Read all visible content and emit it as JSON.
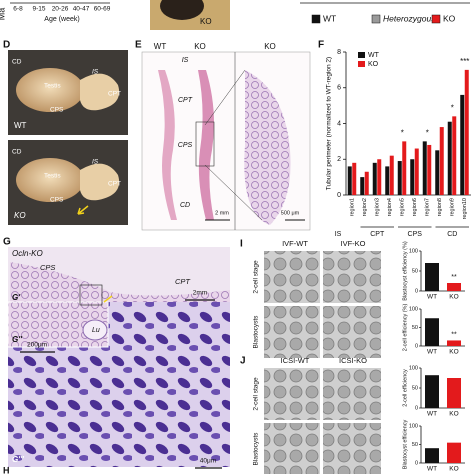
{
  "top": {
    "axis_label_cut": "Ma",
    "xticks": [
      "6-8",
      "9-15",
      "20-26",
      "40-47",
      "60-69"
    ],
    "xlabel": "Age (week)",
    "photo_label": "KO",
    "legend": [
      {
        "name": "WT",
        "color": "#111111"
      },
      {
        "name": "Heterozygous",
        "color": "#9a9a9a"
      },
      {
        "name": "KO",
        "color": "#e31a1c"
      }
    ]
  },
  "panel_d": {
    "label": "D",
    "wt": {
      "labels": [
        "CD",
        "Testis",
        "IS",
        "CPT",
        "CPS"
      ],
      "genotype": "WT"
    },
    "ko": {
      "labels": [
        "CD",
        "Testis",
        "IS",
        "CPT",
        "CPS"
      ],
      "genotype": "KO"
    }
  },
  "panel_e": {
    "label": "E",
    "headers": [
      "WT",
      "KO",
      "KO"
    ],
    "regions": [
      "IS",
      "CPT",
      "CPS",
      "CD"
    ],
    "scale_bars": [
      "2 mm",
      "500 μm"
    ]
  },
  "panel_f": {
    "label": "F",
    "ylabel": "Tubular perimeter (normalized to WT-region 2)",
    "ylim": [
      0,
      8
    ],
    "yticks": [
      0,
      2,
      4,
      6,
      8
    ],
    "categories": [
      "region1",
      "region2",
      "region3",
      "region4",
      "region5",
      "region6",
      "region7",
      "region8",
      "region9",
      "region10"
    ],
    "series": [
      {
        "name": "WT",
        "color": "#111111",
        "values": [
          1.6,
          1.0,
          1.8,
          1.6,
          1.9,
          2.0,
          3.0,
          2.5,
          4.1,
          5.6
        ]
      },
      {
        "name": "KO",
        "color": "#e31a1c",
        "values": [
          1.8,
          1.3,
          2.0,
          2.2,
          3.0,
          2.6,
          2.8,
          3.8,
          4.4,
          7.0
        ]
      }
    ],
    "groups": [
      "IS",
      "CPT",
      "CPS",
      "CD"
    ],
    "annotations": [
      "*",
      "*",
      "*",
      "***"
    ]
  },
  "panel_g": {
    "label": "G",
    "title": "Ocln-KO",
    "regions": [
      "CPS",
      "CPT"
    ],
    "insets": [
      "G'",
      "G''",
      "G'''"
    ],
    "lumen": "Lu",
    "scale_bars": [
      "2mm",
      "200μm",
      "40μm"
    ]
  },
  "panel_i": {
    "label": "I",
    "columns": [
      "IVF-WT",
      "IVF-KO"
    ],
    "rows": [
      "2-cell stage",
      "Blastocysts"
    ],
    "charts": [
      {
        "ylabel": "Blastocyst efficiency (%)",
        "ylim": [
          0,
          100
        ],
        "yticks": [
          0,
          50,
          100
        ],
        "categories": [
          "WT",
          "KO"
        ],
        "values": [
          70,
          20
        ],
        "colors": [
          "#111111",
          "#e31a1c"
        ],
        "annotation": "**"
      },
      {
        "ylabel": "2-cell efficiency (%)",
        "ylim": [
          0,
          100
        ],
        "yticks": [
          0,
          50,
          100
        ],
        "categories": [
          "WT",
          "KO"
        ],
        "values": [
          75,
          15
        ],
        "colors": [
          "#111111",
          "#e31a1c"
        ],
        "annotation": "**"
      }
    ]
  },
  "panel_j": {
    "label": "J",
    "columns": [
      "ICSI-WT",
      "ICSI-KO"
    ],
    "rows": [
      "2-cell stage",
      "Blastocysts"
    ],
    "charts": [
      {
        "ylabel": "2-cell efficiency",
        "ylim": [
          0,
          100
        ],
        "yticks": [
          0,
          50,
          100
        ],
        "categories": [
          "WT",
          "KO"
        ],
        "values": [
          82,
          75
        ],
        "colors": [
          "#111111",
          "#e31a1c"
        ]
      },
      {
        "ylabel": "Blastocyst efficiency",
        "ylim": [
          0,
          100
        ],
        "yticks": [
          0,
          50,
          100
        ],
        "categories": [
          "WT",
          "KO"
        ],
        "values": [
          40,
          55
        ],
        "colors": [
          "#111111",
          "#e31a1c"
        ]
      }
    ]
  },
  "panel_h": {
    "label": "H"
  }
}
